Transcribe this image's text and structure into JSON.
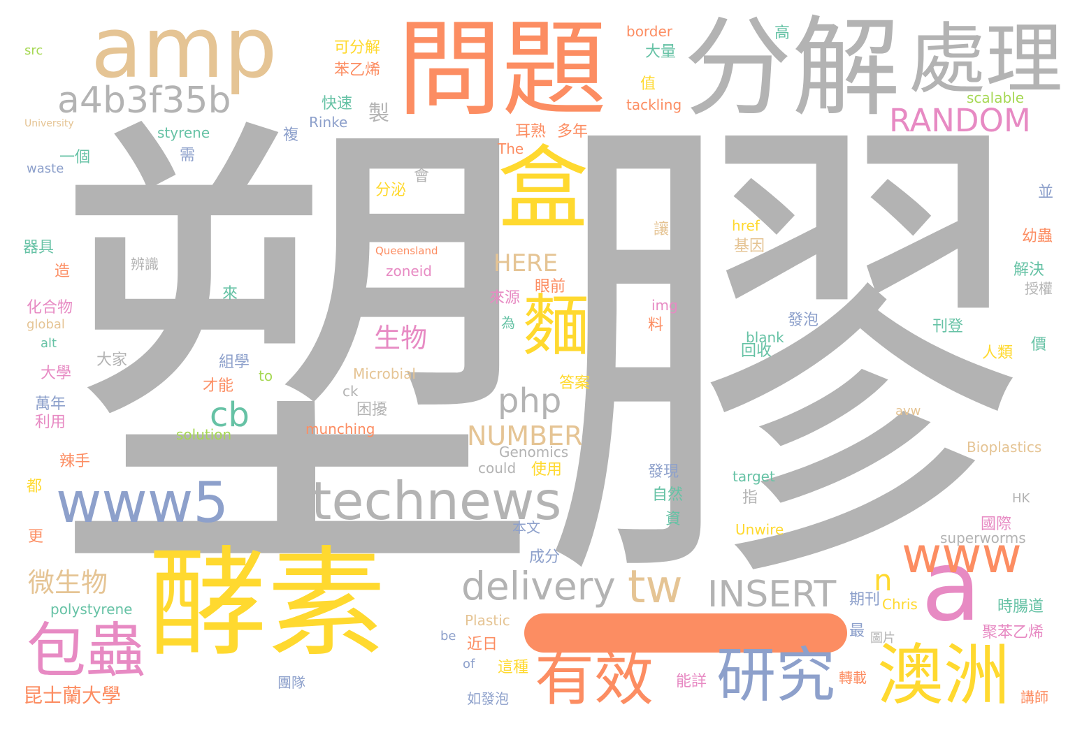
{
  "colors": {
    "gray": "#b3b3b3",
    "tan": "#e5c494",
    "orange": "#fc8d62",
    "yellow": "#ffd92f",
    "blue": "#8da0cb",
    "pink": "#e78ac3",
    "green": "#a6d854",
    "teal": "#66c2a5"
  },
  "words": [
    {
      "text": "塑膠",
      "color": "gray"
    },
    {
      "text": "酵素",
      "color": "yellow"
    },
    {
      "text": "分解",
      "color": "gray"
    },
    {
      "text": "問題",
      "color": "orange"
    },
    {
      "text": "amp",
      "color": "tan"
    },
    {
      "text": "處理",
      "color": "gray"
    },
    {
      "text": "盒",
      "color": "yellow"
    },
    {
      "text": "麵",
      "color": "yellow"
    },
    {
      "text": "a",
      "color": "pink"
    },
    {
      "text": "www",
      "color": "orange"
    },
    {
      "text": "technews",
      "color": "gray"
    },
    {
      "text": "www5",
      "color": "blue"
    },
    {
      "text": "澳洲",
      "color": "yellow"
    },
    {
      "text": "研究",
      "color": "blue"
    },
    {
      "text": "有效",
      "color": "orange"
    },
    {
      "text": "包蟲",
      "color": "pink"
    },
    {
      "text": "a4b3f35b",
      "color": "gray"
    },
    {
      "text": "RANDOM",
      "color": "pink"
    },
    {
      "text": "delivery",
      "color": "gray"
    },
    {
      "text": "tw",
      "color": "tan"
    },
    {
      "text": "INSERT",
      "color": "gray"
    },
    {
      "text": "php",
      "color": "gray"
    },
    {
      "text": "cb",
      "color": "teal"
    },
    {
      "text": "n",
      "color": "yellow"
    },
    {
      "text": "NUMBER",
      "color": "tan"
    },
    {
      "text": "生物",
      "color": "pink"
    },
    {
      "text": "HERE",
      "color": "tan"
    },
    {
      "text": "微生物",
      "color": "tan"
    },
    {
      "text": "昆士蘭大學",
      "color": "orange"
    },
    {
      "text": "製",
      "color": "gray"
    },
    {
      "text": "可分解",
      "color": "yellow"
    },
    {
      "text": "苯乙烯",
      "color": "orange"
    },
    {
      "text": "快速",
      "color": "teal"
    },
    {
      "text": "Rinke",
      "color": "blue"
    },
    {
      "text": "border",
      "color": "orange"
    },
    {
      "text": "大量",
      "color": "teal"
    },
    {
      "text": "值",
      "color": "yellow"
    },
    {
      "text": "tackling",
      "color": "orange"
    },
    {
      "text": "高",
      "color": "teal"
    },
    {
      "text": "scalable",
      "color": "green"
    },
    {
      "text": "src",
      "color": "green"
    },
    {
      "text": "University",
      "color": "tan"
    },
    {
      "text": "styrene",
      "color": "teal"
    },
    {
      "text": "複",
      "color": "blue"
    },
    {
      "text": "耳熟",
      "color": "orange"
    },
    {
      "text": "多年",
      "color": "orange"
    },
    {
      "text": "The",
      "color": "orange"
    },
    {
      "text": "一個",
      "color": "teal"
    },
    {
      "text": "需",
      "color": "blue"
    },
    {
      "text": "waste",
      "color": "blue"
    },
    {
      "text": "會",
      "color": "gray"
    },
    {
      "text": "分泌",
      "color": "yellow"
    },
    {
      "text": "並",
      "color": "blue"
    },
    {
      "text": "讓",
      "color": "tan"
    },
    {
      "text": "href",
      "color": "yellow"
    },
    {
      "text": "基因",
      "color": "tan"
    },
    {
      "text": "幼蟲",
      "color": "orange"
    },
    {
      "text": "器具",
      "color": "teal"
    },
    {
      "text": "辨識",
      "color": "gray"
    },
    {
      "text": "Queensland",
      "color": "orange"
    },
    {
      "text": "zoneid",
      "color": "pink"
    },
    {
      "text": "造",
      "color": "orange"
    },
    {
      "text": "解決",
      "color": "teal"
    },
    {
      "text": "授權",
      "color": "gray"
    },
    {
      "text": "眼前",
      "color": "orange"
    },
    {
      "text": "來",
      "color": "teal"
    },
    {
      "text": "來源",
      "color": "pink"
    },
    {
      "text": "img",
      "color": "pink"
    },
    {
      "text": "化合物",
      "color": "pink"
    },
    {
      "text": "global",
      "color": "tan"
    },
    {
      "text": "為",
      "color": "teal"
    },
    {
      "text": "料",
      "color": "orange"
    },
    {
      "text": "發泡",
      "color": "blue"
    },
    {
      "text": "刊登",
      "color": "teal"
    },
    {
      "text": "alt",
      "color": "teal"
    },
    {
      "text": "blank",
      "color": "teal"
    },
    {
      "text": "回收",
      "color": "teal"
    },
    {
      "text": "價",
      "color": "teal"
    },
    {
      "text": "大家",
      "color": "gray"
    },
    {
      "text": "人類",
      "color": "yellow"
    },
    {
      "text": "大學",
      "color": "pink"
    },
    {
      "text": "組學",
      "color": "blue"
    },
    {
      "text": "to",
      "color": "green"
    },
    {
      "text": "Microbial",
      "color": "tan"
    },
    {
      "text": "才能",
      "color": "orange"
    },
    {
      "text": "答案",
      "color": "yellow"
    },
    {
      "text": "ck",
      "color": "gray"
    },
    {
      "text": "萬年",
      "color": "blue"
    },
    {
      "text": "困擾",
      "color": "gray"
    },
    {
      "text": "avw",
      "color": "tan"
    },
    {
      "text": "利用",
      "color": "pink"
    },
    {
      "text": "munching",
      "color": "orange"
    },
    {
      "text": "solution",
      "color": "green"
    },
    {
      "text": "Bioplastics",
      "color": "tan"
    },
    {
      "text": "Genomics",
      "color": "gray"
    },
    {
      "text": "辣手",
      "color": "orange"
    },
    {
      "text": "could",
      "color": "gray"
    },
    {
      "text": "使用",
      "color": "yellow"
    },
    {
      "text": "發現",
      "color": "blue"
    },
    {
      "text": "target",
      "color": "teal"
    },
    {
      "text": "都",
      "color": "yellow"
    },
    {
      "text": "自然",
      "color": "teal"
    },
    {
      "text": "指",
      "color": "gray"
    },
    {
      "text": "HK",
      "color": "gray"
    },
    {
      "text": "資",
      "color": "teal"
    },
    {
      "text": "本文",
      "color": "blue"
    },
    {
      "text": "國際",
      "color": "pink"
    },
    {
      "text": "更",
      "color": "orange"
    },
    {
      "text": "Unwire",
      "color": "yellow"
    },
    {
      "text": "superworms",
      "color": "gray"
    },
    {
      "text": "成分",
      "color": "blue"
    },
    {
      "text": "期刊",
      "color": "blue"
    },
    {
      "text": "Chris",
      "color": "yellow"
    },
    {
      "text": "時腸道",
      "color": "teal"
    },
    {
      "text": "polystyrene",
      "color": "teal"
    },
    {
      "text": "Plastic",
      "color": "tan"
    },
    {
      "text": "最",
      "color": "blue"
    },
    {
      "text": "be",
      "color": "blue"
    },
    {
      "text": "近日",
      "color": "orange"
    },
    {
      "text": "圖片",
      "color": "gray"
    },
    {
      "text": "聚苯乙烯",
      "color": "pink"
    },
    {
      "text": "of",
      "color": "blue"
    },
    {
      "text": "這種",
      "color": "yellow"
    },
    {
      "text": "團隊",
      "color": "blue"
    },
    {
      "text": "能詳",
      "color": "pink"
    },
    {
      "text": "轉載",
      "color": "orange"
    },
    {
      "text": "如發泡",
      "color": "blue"
    },
    {
      "text": "講師",
      "color": "orange"
    }
  ]
}
